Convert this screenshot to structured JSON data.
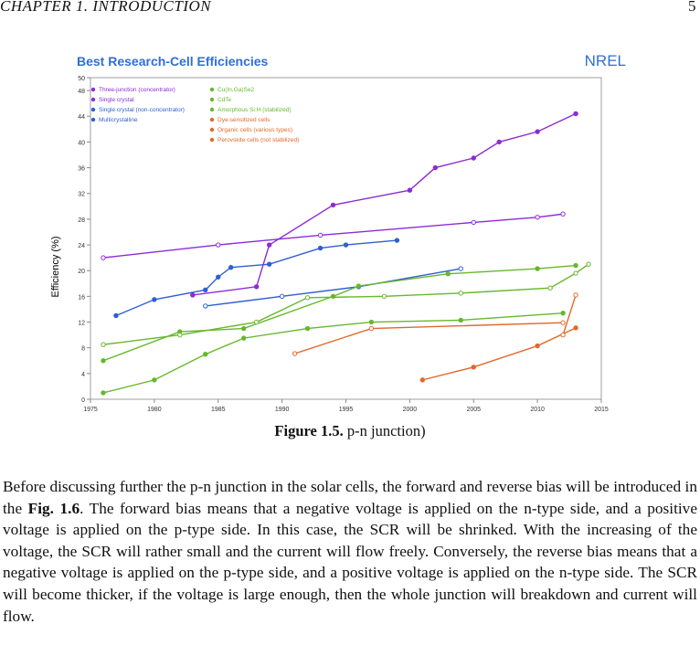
{
  "header": {
    "chapter": "CHAPTER 1.  INTRODUCTION",
    "page": "5"
  },
  "chart_data": {
    "type": "line",
    "title": "Best Research-Cell Efficiencies",
    "logo": "NREL",
    "y_label": "Efficiency (%)",
    "xlim": [
      1975,
      2015
    ],
    "xticks": [
      1975,
      1980,
      1985,
      1990,
      1995,
      2000,
      2005,
      2010,
      2015
    ],
    "ylim": [
      0,
      50
    ],
    "yticks": [
      0,
      4,
      8,
      12,
      16,
      20,
      24,
      28,
      32,
      36,
      40,
      44,
      48,
      50
    ],
    "series": [
      {
        "name": "Three-junction (concentrator)",
        "color": "#8d2bd6",
        "x": [
          1983,
          1988,
          1989,
          1994,
          2000,
          2002,
          2005,
          2007,
          2010,
          2013
        ],
        "values": [
          16.2,
          17.5,
          24,
          30.2,
          32.5,
          36,
          37.5,
          40,
          41.6,
          44.4
        ]
      },
      {
        "name": "Single crystal",
        "color": "#8d2bd6",
        "x": [
          1976,
          1985,
          1993,
          2005,
          2010,
          2012
        ],
        "values": [
          22,
          24,
          25.5,
          27.5,
          28.3,
          28.8
        ]
      },
      {
        "name": "Single crystal (non-concentrator)",
        "color": "#2f5fd0",
        "x": [
          1977,
          1980,
          1984,
          1985,
          1986,
          1989,
          1993,
          1995,
          1999
        ],
        "values": [
          13,
          15.5,
          17,
          19,
          20.5,
          21,
          23.5,
          24,
          24.7
        ]
      },
      {
        "name": "Multicrystalline",
        "color": "#2f5fd0",
        "x": [
          1984,
          1990,
          1996,
          2004
        ],
        "values": [
          14.5,
          16,
          17.5,
          20.3
        ]
      },
      {
        "name": "Cu(In,Ga)Se2",
        "color": "#66b82a",
        "x": [
          1976,
          1982,
          1987,
          1994,
          1996,
          2003,
          2010,
          2013
        ],
        "values": [
          6,
          10.5,
          11,
          16,
          17.6,
          19.5,
          20.3,
          20.8
        ]
      },
      {
        "name": "CdTe",
        "color": "#66b82a",
        "x": [
          1976,
          1982,
          1988,
          1992,
          1998,
          2004,
          2011,
          2013,
          2014
        ],
        "values": [
          8.5,
          10,
          12,
          15.8,
          16,
          16.5,
          17.3,
          19.6,
          21
        ]
      },
      {
        "name": "Amorphous Si:H (stabilized)",
        "color": "#66b82a",
        "x": [
          1976,
          1980,
          1984,
          1987,
          1992,
          1997,
          2004,
          2012
        ],
        "values": [
          1,
          3,
          7,
          9.5,
          11,
          12,
          12.3,
          13.4
        ]
      },
      {
        "name": "Dye-sensitized cells",
        "color": "#e0692a",
        "x": [
          1991,
          1997,
          2012
        ],
        "values": [
          7.1,
          11,
          11.9
        ]
      },
      {
        "name": "Organic cells (various types)",
        "color": "#e0692a",
        "x": [
          2001,
          2005,
          2010,
          2013
        ],
        "values": [
          3,
          5,
          8.3,
          11.1
        ]
      },
      {
        "name": "Perovskite cells (not stabilized)",
        "color": "#e0692a",
        "x": [
          2012,
          2013
        ],
        "values": [
          10,
          16.2
        ]
      }
    ]
  },
  "caption": {
    "label": "Figure 1.5.",
    "text": "p-n junction)"
  },
  "paragraph": {
    "before": "Before discussing further the p-n junction in the solar cells, the forward and reverse bias will be introduced in the",
    "ref": "Fig. 1.6",
    "after": ". The forward bias means that a negative voltage is applied on the n-type side, and a positive voltage is applied on the p-type side.  In this case, the SCR will be shrinked.  With the increasing of the voltage, the SCR will rather small and the current will flow freely. Conversely, the reverse bias means that a negative voltage is applied on the p-type side, and a positive voltage is applied on the n-type side. The SCR will become thicker, if the voltage is large enough, then the whole junction will breakdown and current will flow."
  }
}
